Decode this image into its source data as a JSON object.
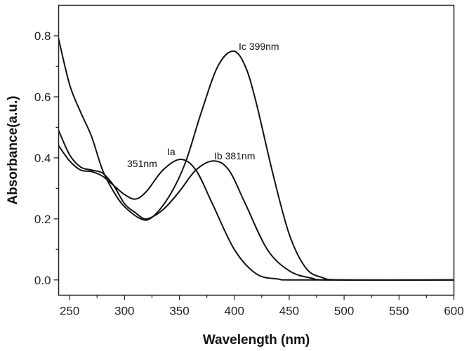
{
  "chart_data": {
    "type": "line",
    "title": "",
    "xlabel": "Wavelength (nm)",
    "ylabel": "Absorbance(a.u.)",
    "xlim": [
      240,
      600
    ],
    "ylim": [
      -0.05,
      0.9
    ],
    "xticks": [
      250,
      300,
      350,
      400,
      450,
      500,
      550,
      600
    ],
    "xtick_labels": [
      "250",
      "300",
      "350",
      "400",
      "450",
      "500",
      "550",
      "600"
    ],
    "yticks": [
      0.0,
      0.2,
      0.4,
      0.6,
      0.8
    ],
    "ytick_labels": [
      "0.0",
      "0.2",
      "0.4",
      "0.6",
      "0.8"
    ],
    "grid": false,
    "line_color": "#111111",
    "series": [
      {
        "x": [
          240,
          250,
          260,
          270,
          280,
          290,
          300,
          310,
          320,
          335,
          351,
          365,
          380,
          400,
          420,
          440,
          460,
          600
        ],
        "y": [
          0.44,
          0.39,
          0.36,
          0.355,
          0.34,
          0.31,
          0.28,
          0.265,
          0.29,
          0.36,
          0.395,
          0.36,
          0.25,
          0.1,
          0.02,
          0.003,
          0,
          0
        ]
      },
      {
        "x": [
          240,
          250,
          260,
          270,
          280,
          290,
          300,
          310,
          320,
          335,
          350,
          365,
          381,
          395,
          410,
          430,
          450,
          470,
          490,
          600
        ],
        "y": [
          0.49,
          0.41,
          0.37,
          0.36,
          0.35,
          0.31,
          0.25,
          0.22,
          0.2,
          0.23,
          0.29,
          0.36,
          0.39,
          0.36,
          0.25,
          0.1,
          0.03,
          0.006,
          0,
          0
        ]
      },
      {
        "x": [
          240,
          250,
          260,
          270,
          280,
          290,
          300,
          315,
          325,
          340,
          355,
          370,
          385,
          399,
          410,
          420,
          435,
          450,
          465,
          480,
          500,
          600
        ],
        "y": [
          0.79,
          0.64,
          0.55,
          0.47,
          0.36,
          0.29,
          0.24,
          0.2,
          0.205,
          0.27,
          0.38,
          0.55,
          0.7,
          0.75,
          0.7,
          0.58,
          0.35,
          0.15,
          0.04,
          0.008,
          0,
          0
        ]
      }
    ],
    "annotations": [
      {
        "text": "Ic 399nm",
        "x": 399,
        "y": 0.75
      },
      {
        "text": "Ib 381nm",
        "x": 381,
        "y": 0.39
      },
      {
        "text": "Ia",
        "x": 351,
        "y": 0.395
      },
      {
        "text": "351nm",
        "x": 351,
        "y": 0.395
      }
    ]
  }
}
